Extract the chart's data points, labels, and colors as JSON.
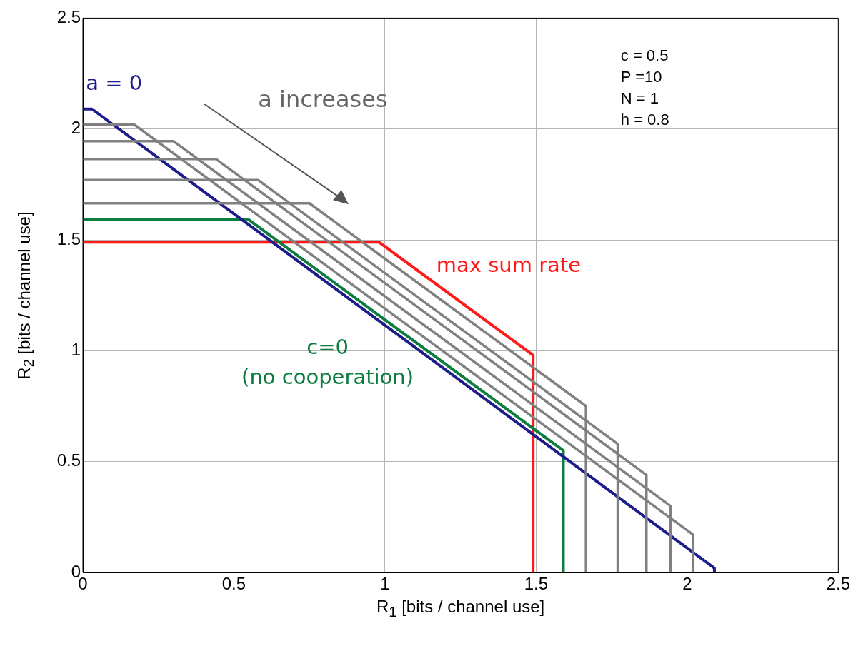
{
  "chart_data": {
    "type": "line",
    "xlabel": "R$_{1}$ [bits / channel use]",
    "ylabel": "R$_{2}$ [bits / channel use]",
    "xlim": [
      0,
      2.5
    ],
    "ylim": [
      0,
      2.5
    ],
    "xticks": [
      0,
      0.5,
      1,
      1.5,
      2,
      2.5
    ],
    "yticks": [
      0,
      0.5,
      1,
      1.5,
      2,
      2.5
    ],
    "grid": true,
    "legend": false,
    "marker": "none",
    "line_style": "solid",
    "annotations": [
      "a increases",
      "c = 0.5",
      "P =10",
      "N = 1",
      "h = 0.8"
    ],
    "series": [
      {
        "color": "#808080",
        "x": [
          0,
          0.17,
          2.02,
          2.02
        ],
        "values": [
          2.02,
          2.02,
          0.17,
          0
        ]
      },
      {
        "color": "#808080",
        "x": [
          0,
          0.3,
          1.945,
          1.945
        ],
        "values": [
          1.945,
          1.945,
          0.3,
          0
        ]
      },
      {
        "color": "#808080",
        "x": [
          0,
          0.44,
          1.865,
          1.865
        ],
        "values": [
          1.865,
          1.865,
          0.44,
          0
        ]
      },
      {
        "color": "#808080",
        "x": [
          0,
          0.58,
          1.77,
          1.77
        ],
        "values": [
          1.77,
          1.77,
          0.58,
          0
        ]
      },
      {
        "color": "#808080",
        "x": [
          0,
          0.75,
          1.665,
          1.665
        ],
        "values": [
          1.665,
          1.665,
          0.75,
          0
        ]
      },
      {
        "name": "a = 0",
        "color": "#1c1c8a",
        "x": [
          0,
          0.03,
          2.07,
          2.09,
          2.09
        ],
        "values": [
          2.09,
          2.09,
          0.04,
          0.02,
          0
        ]
      },
      {
        "name": "c=0 (no cooperation)",
        "color": "#0b7d3e",
        "x": [
          0,
          0.55,
          1.59,
          1.59
        ],
        "values": [
          1.59,
          1.59,
          0.55,
          0
        ]
      },
      {
        "name": "max sum rate",
        "color": "#ff1a1a",
        "x": [
          0,
          0.98,
          1.49,
          1.49
        ],
        "values": [
          1.49,
          1.49,
          0.98,
          0
        ]
      }
    ]
  }
}
